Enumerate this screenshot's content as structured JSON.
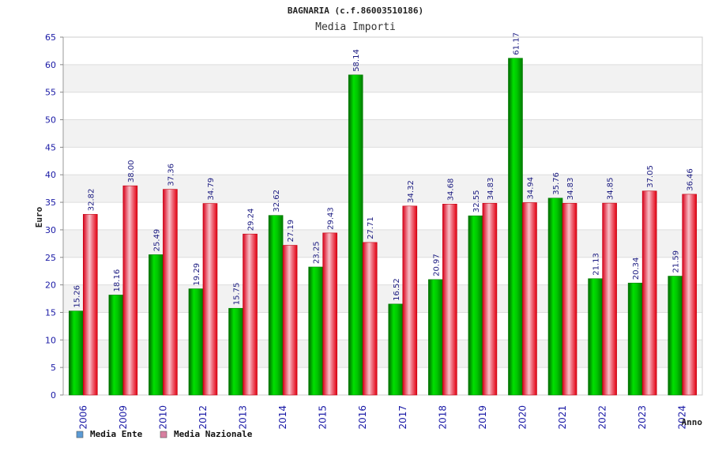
{
  "chart_data": {
    "type": "bar",
    "title": "BAGNARIA (c.f.86003510186)",
    "subtitle": "Media Importi",
    "xlabel": "Anno",
    "ylabel": "Euro",
    "ylim": [
      0,
      65
    ],
    "ytick_step": 5,
    "yticks": [
      "0",
      "5",
      "10",
      "15",
      "20",
      "25",
      "30",
      "35",
      "40",
      "45",
      "50",
      "55",
      "60",
      "65"
    ],
    "categories": [
      "2006",
      "2009",
      "2010",
      "2012",
      "2013",
      "2014",
      "2015",
      "2016",
      "2017",
      "2018",
      "2019",
      "2020",
      "2021",
      "2022",
      "2023",
      "2024"
    ],
    "series": [
      {
        "name": "Media Ente",
        "legend_color": "#5b9bd5",
        "color": "#00b000",
        "values": [
          15.26,
          18.16,
          25.49,
          19.29,
          15.75,
          32.62,
          23.25,
          58.14,
          16.52,
          20.97,
          32.55,
          61.17,
          35.76,
          21.13,
          20.34,
          21.59
        ],
        "labels": [
          "15.26",
          "18.16",
          "25.49",
          "19.29",
          "15.75",
          "32.62",
          "23.25",
          "58.14",
          "16.52",
          "20.97",
          "32.55",
          "61.17",
          "35.76",
          "21.13",
          "20.34",
          "21.59"
        ]
      },
      {
        "name": "Media Nazionale",
        "legend_color": "#d77fa0",
        "color": "#e00010",
        "values": [
          32.82,
          38.0,
          37.36,
          34.79,
          29.24,
          27.19,
          29.43,
          27.71,
          34.32,
          34.68,
          34.83,
          34.94,
          34.83,
          34.85,
          37.05,
          36.46
        ],
        "labels": [
          "32.82",
          "38.00",
          "37.36",
          "34.79",
          "29.24",
          "27.19",
          "29.43",
          "27.71",
          "34.32",
          "34.68",
          "34.83",
          "34.94",
          "34.83",
          "34.85",
          "37.05",
          "36.46"
        ]
      }
    ],
    "grid": true,
    "legend": "bottom-left"
  }
}
